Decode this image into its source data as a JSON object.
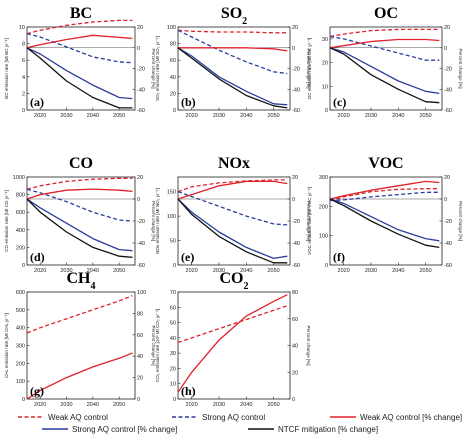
{
  "figure": {
    "legend": [
      {
        "label": "Weak AQ control",
        "color": "#e0202a",
        "dash": true
      },
      {
        "label": "Strong AQ control",
        "color": "#2a3e9c",
        "dash": true
      },
      {
        "label": "Weak AQ control [% change]",
        "color": "#e0202a",
        "dash": false
      },
      {
        "label": "Strong AQ control [% change]",
        "color": "#2a3e9c",
        "dash": false
      },
      {
        "label": "NTCF mitigation [% change]",
        "color": "#111111",
        "dash": false
      }
    ]
  },
  "chart_data": [
    {
      "type": "line",
      "title": "BC",
      "letter": "(a)",
      "ylabel": "BC emission rate [Mt BC yr⁻¹]",
      "y2label": "Percent change [%]",
      "x": [
        2015,
        2020,
        2030,
        2040,
        2050,
        2055
      ],
      "xticks": [
        2020,
        2030,
        2040,
        2050
      ],
      "xlim": [
        2015,
        2056
      ],
      "ylim": [
        0,
        10
      ],
      "yticks": [
        0,
        2,
        4,
        6,
        8,
        10
      ],
      "y2lim": [
        -60,
        20
      ],
      "y2ticks": [
        -60,
        -40,
        -20,
        0,
        20
      ],
      "series": [
        {
          "name": "Weak AQ control",
          "axis": "left",
          "color": "#e0202a",
          "dash": true,
          "values": [
            9.2,
            9.6,
            10.2,
            10.6,
            10.8,
            10.8
          ]
        },
        {
          "name": "Strong AQ control",
          "axis": "left",
          "color": "#2a3e9c",
          "dash": true,
          "values": [
            9.2,
            8.8,
            7.6,
            6.4,
            5.8,
            5.7
          ]
        },
        {
          "name": "Weak AQ control [% change]",
          "axis": "right",
          "color": "#e0202a",
          "dash": false,
          "values": [
            0,
            3,
            8,
            12,
            10,
            9
          ]
        },
        {
          "name": "Strong AQ control [% change]",
          "axis": "right",
          "color": "#2a3e9c",
          "dash": false,
          "values": [
            0,
            -6,
            -22,
            -36,
            -48,
            -49
          ]
        },
        {
          "name": "NTCF mitigation [% change]",
          "axis": "right",
          "color": "#111111",
          "dash": false,
          "values": [
            0,
            -10,
            -32,
            -48,
            -58,
            -58
          ]
        }
      ]
    },
    {
      "type": "line",
      "title": "SO",
      "title_sub": "2",
      "letter": "(b)",
      "ylabel": "SO₂ emission rate [Mt SO₂ yr⁻¹]",
      "y2label": "Percent change [%]",
      "x": [
        2015,
        2020,
        2030,
        2040,
        2050,
        2055
      ],
      "xticks": [
        2020,
        2030,
        2040,
        2050
      ],
      "xlim": [
        2015,
        2056
      ],
      "ylim": [
        0,
        100
      ],
      "yticks": [
        0,
        20,
        40,
        60,
        80,
        100
      ],
      "y2lim": [
        -60,
        20
      ],
      "y2ticks": [
        -60,
        -40,
        -20,
        0,
        20
      ],
      "series": [
        {
          "name": "Weak AQ control",
          "axis": "left",
          "color": "#e0202a",
          "dash": true,
          "values": [
            96,
            95,
            94,
            94,
            93,
            93
          ]
        },
        {
          "name": "Strong AQ control",
          "axis": "left",
          "color": "#2a3e9c",
          "dash": true,
          "values": [
            96,
            88,
            72,
            58,
            46,
            44
          ]
        },
        {
          "name": "Weak AQ control [% change]",
          "axis": "right",
          "color": "#e0202a",
          "dash": false,
          "values": [
            0,
            0,
            0,
            0,
            -1,
            -3
          ]
        },
        {
          "name": "Strong AQ control [% change]",
          "axis": "right",
          "color": "#2a3e9c",
          "dash": false,
          "values": [
            0,
            -8,
            -28,
            -42,
            -54,
            -55
          ]
        },
        {
          "name": "NTCF mitigation [% change]",
          "axis": "right",
          "color": "#111111",
          "dash": false,
          "values": [
            0,
            -10,
            -30,
            -46,
            -56,
            -58
          ]
        }
      ]
    },
    {
      "type": "line",
      "title": "OC",
      "letter": "(c)",
      "ylabel": "OC emission rate [Mt OC yr⁻¹]",
      "y2label": "Percent change [%]",
      "x": [
        2015,
        2020,
        2030,
        2040,
        2050,
        2055
      ],
      "xticks": [
        2020,
        2030,
        2040,
        2050
      ],
      "xlim": [
        2015,
        2056
      ],
      "ylim": [
        0,
        35
      ],
      "yticks": [
        0,
        10,
        20,
        30
      ],
      "y2lim": [
        -60,
        20
      ],
      "y2ticks": [
        -60,
        -40,
        -20,
        0,
        20
      ],
      "series": [
        {
          "name": "Weak AQ control",
          "axis": "left",
          "color": "#e0202a",
          "dash": true,
          "values": [
            31,
            32,
            33.5,
            34,
            34,
            34
          ]
        },
        {
          "name": "Strong AQ control",
          "axis": "left",
          "color": "#2a3e9c",
          "dash": true,
          "values": [
            31,
            30,
            27,
            24,
            21,
            21
          ]
        },
        {
          "name": "Weak AQ control [% change]",
          "axis": "right",
          "color": "#e0202a",
          "dash": false,
          "values": [
            0,
            2,
            6,
            8,
            8,
            7
          ]
        },
        {
          "name": "Strong AQ control [% change]",
          "axis": "right",
          "color": "#2a3e9c",
          "dash": false,
          "values": [
            0,
            -4,
            -18,
            -32,
            -42,
            -44
          ]
        },
        {
          "name": "NTCF mitigation [% change]",
          "axis": "right",
          "color": "#111111",
          "dash": false,
          "values": [
            0,
            -6,
            -26,
            -40,
            -52,
            -53
          ]
        }
      ]
    },
    {
      "type": "line",
      "title": "CO",
      "letter": "(d)",
      "ylabel": "CO emission rate [Mt CO yr⁻¹]",
      "y2label": "Percent change [%]",
      "x": [
        2015,
        2020,
        2030,
        2040,
        2050,
        2055
      ],
      "xticks": [
        2020,
        2030,
        2040,
        2050
      ],
      "xlim": [
        2015,
        2056
      ],
      "ylim": [
        0,
        1000
      ],
      "yticks": [
        0,
        200,
        400,
        600,
        800,
        1000
      ],
      "y2lim": [
        -60,
        20
      ],
      "y2ticks": [
        -60,
        -40,
        -20,
        0,
        20
      ],
      "series": [
        {
          "name": "Weak AQ control",
          "axis": "left",
          "color": "#e0202a",
          "dash": true,
          "values": [
            860,
            900,
            950,
            975,
            985,
            985
          ]
        },
        {
          "name": "Strong AQ control",
          "axis": "left",
          "color": "#2a3e9c",
          "dash": true,
          "values": [
            860,
            820,
            720,
            600,
            510,
            500
          ]
        },
        {
          "name": "Weak AQ control [% change]",
          "axis": "right",
          "color": "#e0202a",
          "dash": false,
          "values": [
            0,
            4,
            8,
            9,
            8,
            7
          ]
        },
        {
          "name": "Strong AQ control [% change]",
          "axis": "right",
          "color": "#2a3e9c",
          "dash": false,
          "values": [
            0,
            -8,
            -22,
            -36,
            -46,
            -47
          ]
        },
        {
          "name": "NTCF mitigation [% change]",
          "axis": "right",
          "color": "#111111",
          "dash": false,
          "values": [
            0,
            -12,
            -30,
            -44,
            -52,
            -53
          ]
        }
      ]
    },
    {
      "type": "line",
      "title": "NOx",
      "letter": "(e)",
      "ylabel": "NOx emission rate [Mt NO₂ yr⁻¹]",
      "y2label": "Percent change [%]",
      "x": [
        2015,
        2020,
        2030,
        2040,
        2050,
        2055
      ],
      "xticks": [
        2020,
        2030,
        2040,
        2050
      ],
      "xlim": [
        2015,
        2056
      ],
      "ylim": [
        0,
        180
      ],
      "yticks": [
        0,
        50,
        100,
        150
      ],
      "y2lim": [
        -60,
        20
      ],
      "y2ticks": [
        -60,
        -40,
        -20,
        0,
        20
      ],
      "series": [
        {
          "name": "Weak AQ control",
          "axis": "left",
          "color": "#e0202a",
          "dash": true,
          "values": [
            150,
            160,
            168,
            172,
            174,
            174
          ]
        },
        {
          "name": "Strong AQ control",
          "axis": "left",
          "color": "#2a3e9c",
          "dash": true,
          "values": [
            150,
            140,
            120,
            100,
            84,
            82
          ]
        },
        {
          "name": "Weak AQ control [% change]",
          "axis": "right",
          "color": "#e0202a",
          "dash": false,
          "values": [
            0,
            4,
            12,
            16,
            16,
            14
          ]
        },
        {
          "name": "Strong AQ control [% change]",
          "axis": "right",
          "color": "#2a3e9c",
          "dash": false,
          "values": [
            0,
            -12,
            -30,
            -44,
            -54,
            -52
          ]
        },
        {
          "name": "NTCF mitigation [% change]",
          "axis": "right",
          "color": "#111111",
          "dash": false,
          "values": [
            0,
            -14,
            -34,
            -48,
            -58,
            -58
          ]
        }
      ]
    },
    {
      "type": "line",
      "title": "VOC",
      "letter": "(f)",
      "ylabel": "VOC emission rate [Mt VOC yr⁻¹]",
      "y2label": "Percent change [%]",
      "x": [
        2015,
        2020,
        2030,
        2040,
        2050,
        2055
      ],
      "xticks": [
        2020,
        2030,
        2040,
        2050
      ],
      "xlim": [
        2015,
        2056
      ],
      "ylim": [
        0,
        300
      ],
      "yticks": [
        0,
        100,
        200,
        300
      ],
      "y2lim": [
        -60,
        20
      ],
      "y2ticks": [
        -60,
        -40,
        -20,
        0,
        20
      ],
      "series": [
        {
          "name": "Weak AQ control",
          "axis": "left",
          "color": "#e0202a",
          "dash": true,
          "values": [
            220,
            232,
            250,
            258,
            260,
            260
          ]
        },
        {
          "name": "Strong AQ control",
          "axis": "left",
          "color": "#2a3e9c",
          "dash": true,
          "values": [
            220,
            222,
            232,
            240,
            248,
            248
          ]
        },
        {
          "name": "Weak AQ control [% change]",
          "axis": "right",
          "color": "#e0202a",
          "dash": false,
          "values": [
            0,
            3,
            8,
            12,
            16,
            15
          ]
        },
        {
          "name": "Strong AQ control [% change]",
          "axis": "right",
          "color": "#2a3e9c",
          "dash": false,
          "values": [
            0,
            -4,
            -16,
            -28,
            -36,
            -38
          ]
        },
        {
          "name": "NTCF mitigation [% change]",
          "axis": "right",
          "color": "#111111",
          "dash": false,
          "values": [
            0,
            -6,
            -20,
            -32,
            -42,
            -44
          ]
        }
      ]
    },
    {
      "type": "line",
      "title": "CH",
      "title_sub": "4",
      "letter": "(g)",
      "ylabel": "CH₄ emission rate [Mt CH₄ yr⁻¹]",
      "y2label": "Percent change [%]",
      "x": [
        2015,
        2020,
        2030,
        2040,
        2050,
        2055
      ],
      "xticks": [
        2020,
        2030,
        2040,
        2050
      ],
      "xlim": [
        2015,
        2056
      ],
      "ylim": [
        0,
        600
      ],
      "yticks": [
        0,
        100,
        200,
        300,
        400,
        500,
        600
      ],
      "y2lim": [
        0,
        100
      ],
      "y2ticks": [
        0,
        20,
        40,
        60,
        80,
        100
      ],
      "series": [
        {
          "name": "Weak AQ control",
          "axis": "left",
          "color": "#e0202a",
          "dash": true,
          "values": [
            370,
            400,
            450,
            500,
            550,
            580
          ]
        },
        {
          "name": "Weak AQ control [% change]",
          "axis": "right",
          "color": "#e0202a",
          "dash": false,
          "values": [
            0,
            8,
            20,
            30,
            38,
            43
          ]
        }
      ]
    },
    {
      "type": "line",
      "title": "CO",
      "title_sub": "2",
      "letter": "(h)",
      "ylabel": "CO₂ emission rate [10³ Mt CO₂ yr⁻¹]",
      "y2label": "Percent change [%]",
      "x": [
        2015,
        2020,
        2030,
        2040,
        2050,
        2055
      ],
      "xticks": [
        2020,
        2030,
        2040,
        2050
      ],
      "xlim": [
        2015,
        2056
      ],
      "ylim": [
        0,
        70
      ],
      "yticks": [
        0,
        10,
        20,
        30,
        40,
        50,
        60,
        70
      ],
      "y2lim": [
        0,
        80
      ],
      "y2ticks": [
        0,
        20,
        40,
        60,
        80
      ],
      "series": [
        {
          "name": "Weak AQ control",
          "axis": "left",
          "color": "#e0202a",
          "dash": true,
          "values": [
            37,
            40,
            46,
            52,
            58,
            61
          ]
        },
        {
          "name": "Weak AQ control [% change]",
          "axis": "right",
          "color": "#e0202a",
          "dash": false,
          "values": [
            5,
            20,
            44,
            62,
            73,
            78
          ]
        }
      ]
    }
  ]
}
